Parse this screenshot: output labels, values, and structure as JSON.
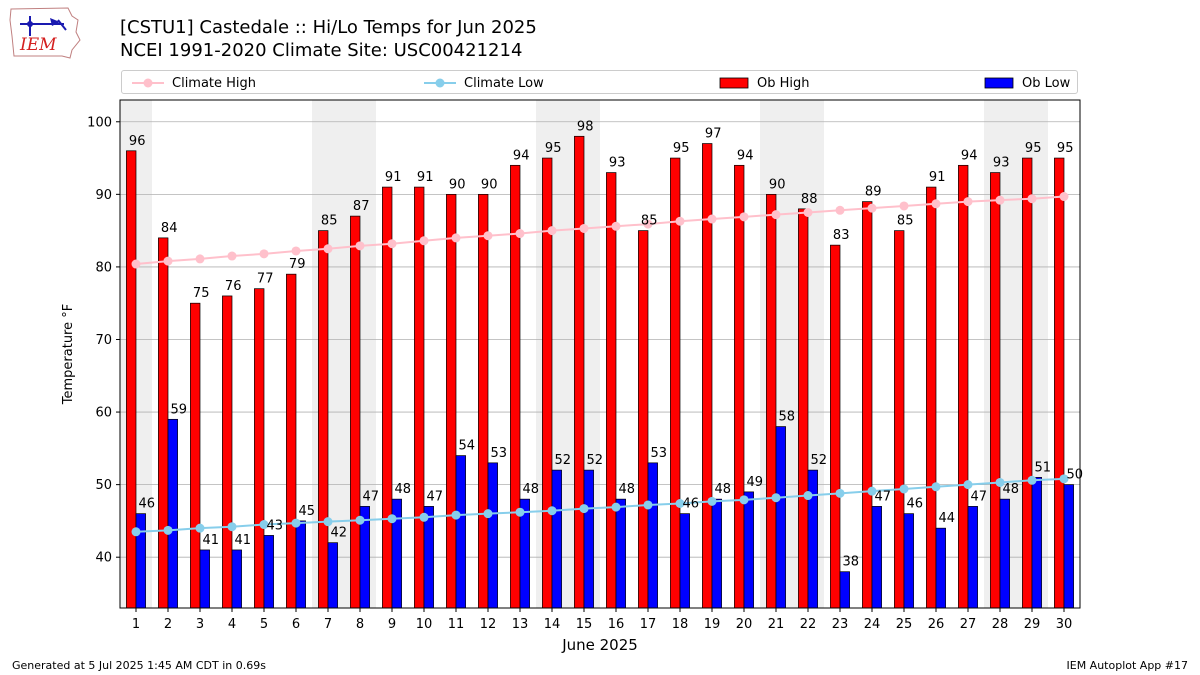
{
  "header": {
    "title_line1": "[CSTU1] Castedale :: Hi/Lo Temps for Jun 2025",
    "title_line2": "NCEI 1991-2020 Climate Site: USC00421214",
    "logo_text": "IEM"
  },
  "footer": {
    "generated": "Generated at 5 Jul 2025 1:45 AM CDT in 0.69s",
    "app": "IEM Autoplot App #17"
  },
  "colors": {
    "ob_high": "#ff0000",
    "ob_low": "#0000ff",
    "climate_high": "#ffc0cb",
    "climate_low": "#87ceeb",
    "weekend_shade": "#efefef",
    "grid": "#b0b0b0"
  },
  "chart_data": {
    "type": "bar",
    "xlabel": "June 2025",
    "ylabel": "Temperature °F",
    "ylim": [
      33,
      103
    ],
    "yticks": [
      40,
      50,
      60,
      70,
      80,
      90,
      100
    ],
    "grid": "horizontal",
    "legend_placement": "top",
    "legend": [
      "Climate High",
      "Climate Low",
      "Ob High",
      "Ob Low"
    ],
    "categories": [
      "1",
      "2",
      "3",
      "4",
      "5",
      "6",
      "7",
      "8",
      "9",
      "10",
      "11",
      "12",
      "13",
      "14",
      "15",
      "16",
      "17",
      "18",
      "19",
      "20",
      "21",
      "22",
      "23",
      "24",
      "25",
      "26",
      "27",
      "28",
      "29",
      "30"
    ],
    "shaded_days": [
      1,
      7,
      8,
      14,
      15,
      21,
      22,
      28,
      29
    ],
    "series": [
      {
        "name": "Ob High",
        "kind": "bar",
        "values": [
          96,
          84,
          75,
          76,
          77,
          79,
          85,
          87,
          91,
          91,
          90,
          90,
          94,
          95,
          98,
          93,
          85,
          95,
          97,
          94,
          90,
          88,
          83,
          89,
          85,
          91,
          94,
          93,
          95,
          95
        ]
      },
      {
        "name": "Ob Low",
        "kind": "bar",
        "values": [
          46,
          59,
          41,
          41,
          43,
          45,
          42,
          47,
          48,
          47,
          54,
          53,
          48,
          52,
          52,
          48,
          53,
          46,
          48,
          49,
          58,
          52,
          38,
          47,
          46,
          44,
          47,
          48,
          51,
          50
        ]
      },
      {
        "name": "Climate High",
        "kind": "line",
        "values": [
          80.4,
          80.8,
          81.1,
          81.5,
          81.8,
          82.2,
          82.5,
          82.9,
          83.2,
          83.6,
          84.0,
          84.3,
          84.6,
          85.0,
          85.3,
          85.6,
          85.9,
          86.3,
          86.6,
          86.9,
          87.2,
          87.5,
          87.8,
          88.1,
          88.4,
          88.7,
          89.0,
          89.2,
          89.4,
          89.7
        ]
      },
      {
        "name": "Climate Low",
        "kind": "line",
        "values": [
          43.5,
          43.7,
          44.0,
          44.2,
          44.5,
          44.7,
          44.9,
          45.1,
          45.3,
          45.5,
          45.8,
          46.0,
          46.2,
          46.4,
          46.7,
          46.9,
          47.2,
          47.4,
          47.7,
          47.9,
          48.2,
          48.5,
          48.8,
          49.1,
          49.4,
          49.7,
          50.0,
          50.3,
          50.6,
          50.8
        ]
      }
    ]
  }
}
